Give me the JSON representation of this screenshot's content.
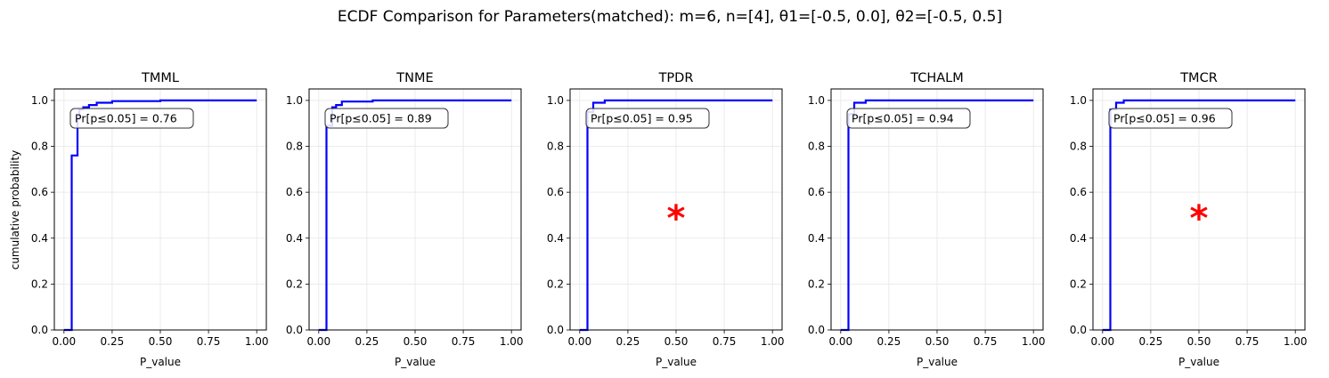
{
  "figure": {
    "suptitle": "ECDF Comparison for Parameters(matched): m=6, n=[4], θ1=[-0.5, 0.0], θ2=[-0.5, 0.5]",
    "ylabel": "cumulative probability"
  },
  "colors": {
    "line": "#0000ff",
    "marker": "#ff0000",
    "grid": "#e6e6e6"
  },
  "chart_data": [
    {
      "type": "line",
      "title": "TMML",
      "xlabel": "P_value",
      "ylabel": "cumulative probability",
      "xlim": [
        -0.05,
        1.05
      ],
      "ylim": [
        0,
        1.05
      ],
      "xticks": [
        "0.00",
        "0.25",
        "0.50",
        "0.75",
        "1.00"
      ],
      "yticks": [
        "0.0",
        "0.2",
        "0.4",
        "0.6",
        "0.8",
        "1.0"
      ],
      "grid": true,
      "annotation": "Pr[p≤0.05] = 0.76",
      "series": [
        {
          "x": [
            0,
            0.04,
            0.04,
            0.07,
            0.07,
            0.08,
            0.08,
            0.1,
            0.1,
            0.13,
            0.13,
            0.17,
            0.17,
            0.25,
            0.25,
            0.5,
            0.5,
            1.0
          ],
          "y": [
            0,
            0,
            0.76,
            0.76,
            0.92,
            0.92,
            0.96,
            0.96,
            0.97,
            0.97,
            0.98,
            0.98,
            0.99,
            0.99,
            0.997,
            0.997,
            1.0,
            1.0
          ]
        }
      ],
      "marker": null
    },
    {
      "type": "line",
      "title": "TNME",
      "xlabel": "P_value",
      "ylabel": "",
      "xlim": [
        -0.05,
        1.05
      ],
      "ylim": [
        0,
        1.05
      ],
      "xticks": [
        "0.00",
        "0.25",
        "0.50",
        "0.75",
        "1.00"
      ],
      "yticks": [
        "0.0",
        "0.2",
        "0.4",
        "0.6",
        "0.8",
        "1.0"
      ],
      "grid": true,
      "annotation": "Pr[p≤0.05] = 0.89",
      "series": [
        {
          "x": [
            0,
            0.04,
            0.04,
            0.07,
            0.07,
            0.09,
            0.09,
            0.12,
            0.12,
            0.28,
            0.28,
            1.0
          ],
          "y": [
            0,
            0,
            0.89,
            0.89,
            0.97,
            0.97,
            0.98,
            0.98,
            0.995,
            0.995,
            1.0,
            1.0
          ]
        }
      ],
      "marker": null
    },
    {
      "type": "line",
      "title": "TPDR",
      "xlabel": "P_value",
      "ylabel": "",
      "xlim": [
        -0.05,
        1.05
      ],
      "ylim": [
        0,
        1.05
      ],
      "xticks": [
        "0.00",
        "0.25",
        "0.50",
        "0.75",
        "1.00"
      ],
      "yticks": [
        "0.0",
        "0.2",
        "0.4",
        "0.6",
        "0.8",
        "1.0"
      ],
      "grid": true,
      "annotation": "Pr[p≤0.05] = 0.95",
      "series": [
        {
          "x": [
            0,
            0.04,
            0.04,
            0.07,
            0.07,
            0.13,
            0.13,
            1.0
          ],
          "y": [
            0,
            0,
            0.95,
            0.95,
            0.99,
            0.99,
            1.0,
            1.0
          ]
        }
      ],
      "marker": {
        "x": 0.5,
        "y": 0.5
      }
    },
    {
      "type": "line",
      "title": "TCHALM",
      "xlabel": "P_value",
      "ylabel": "",
      "xlim": [
        -0.05,
        1.05
      ],
      "ylim": [
        0,
        1.05
      ],
      "xticks": [
        "0.00",
        "0.25",
        "0.50",
        "0.75",
        "1.00"
      ],
      "yticks": [
        "0.0",
        "0.2",
        "0.4",
        "0.6",
        "0.8",
        "1.0"
      ],
      "grid": true,
      "annotation": "Pr[p≤0.05] = 0.94",
      "series": [
        {
          "x": [
            0,
            0.04,
            0.04,
            0.07,
            0.07,
            0.13,
            0.13,
            1.0
          ],
          "y": [
            0,
            0,
            0.94,
            0.94,
            0.99,
            0.99,
            1.0,
            1.0
          ]
        }
      ],
      "marker": null
    },
    {
      "type": "line",
      "title": "TMCR",
      "xlabel": "P_value",
      "ylabel": "",
      "xlim": [
        -0.05,
        1.05
      ],
      "ylim": [
        0,
        1.05
      ],
      "xticks": [
        "0.00",
        "0.25",
        "0.50",
        "0.75",
        "1.00"
      ],
      "yticks": [
        "0.0",
        "0.2",
        "0.4",
        "0.6",
        "0.8",
        "1.0"
      ],
      "grid": true,
      "annotation": "Pr[p≤0.05] = 0.96",
      "series": [
        {
          "x": [
            0,
            0.04,
            0.04,
            0.07,
            0.07,
            0.11,
            0.11,
            1.0
          ],
          "y": [
            0,
            0,
            0.96,
            0.96,
            0.99,
            0.99,
            1.0,
            1.0
          ]
        }
      ],
      "marker": {
        "x": 0.5,
        "y": 0.5
      }
    }
  ]
}
